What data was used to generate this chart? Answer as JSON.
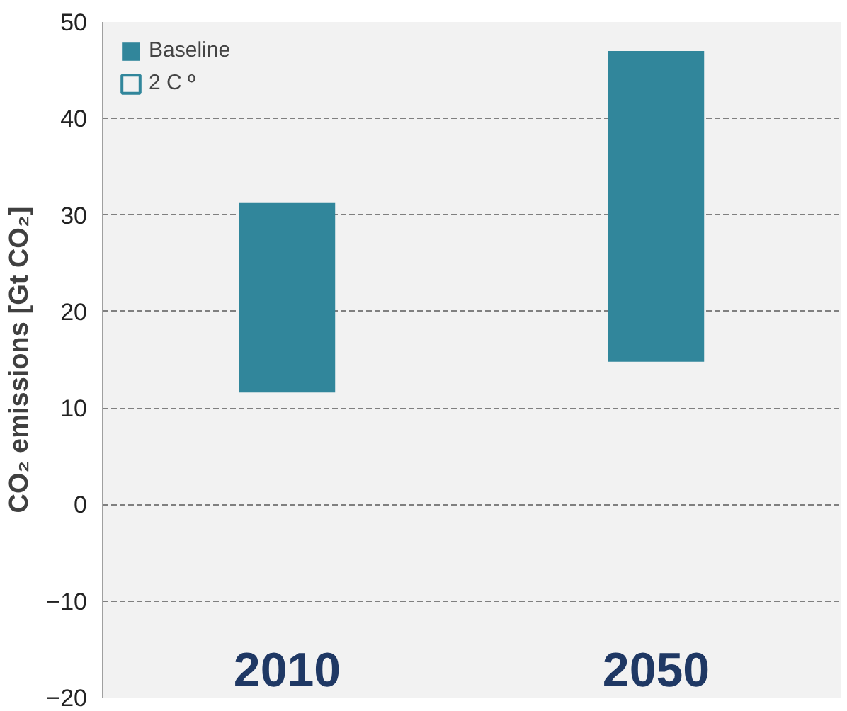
{
  "chart_data": {
    "type": "bar",
    "ylabel": "CO₂ emissions [Gt CO₂]",
    "categories": [
      "2010",
      "2050"
    ],
    "series": [
      {
        "name": "Baseline",
        "color": "#31869b",
        "values": [
          19.7,
          32.2
        ],
        "base": [
          11.6,
          14.8
        ]
      },
      {
        "name": "2 C º",
        "color": "#31869b",
        "values": [
          null,
          null
        ],
        "base": [
          null,
          null
        ]
      }
    ],
    "ylim": [
      -20,
      50
    ],
    "yticks": [
      -20,
      -10,
      0,
      10,
      20,
      30,
      40,
      50
    ],
    "grid": "y",
    "legend": "top left"
  }
}
